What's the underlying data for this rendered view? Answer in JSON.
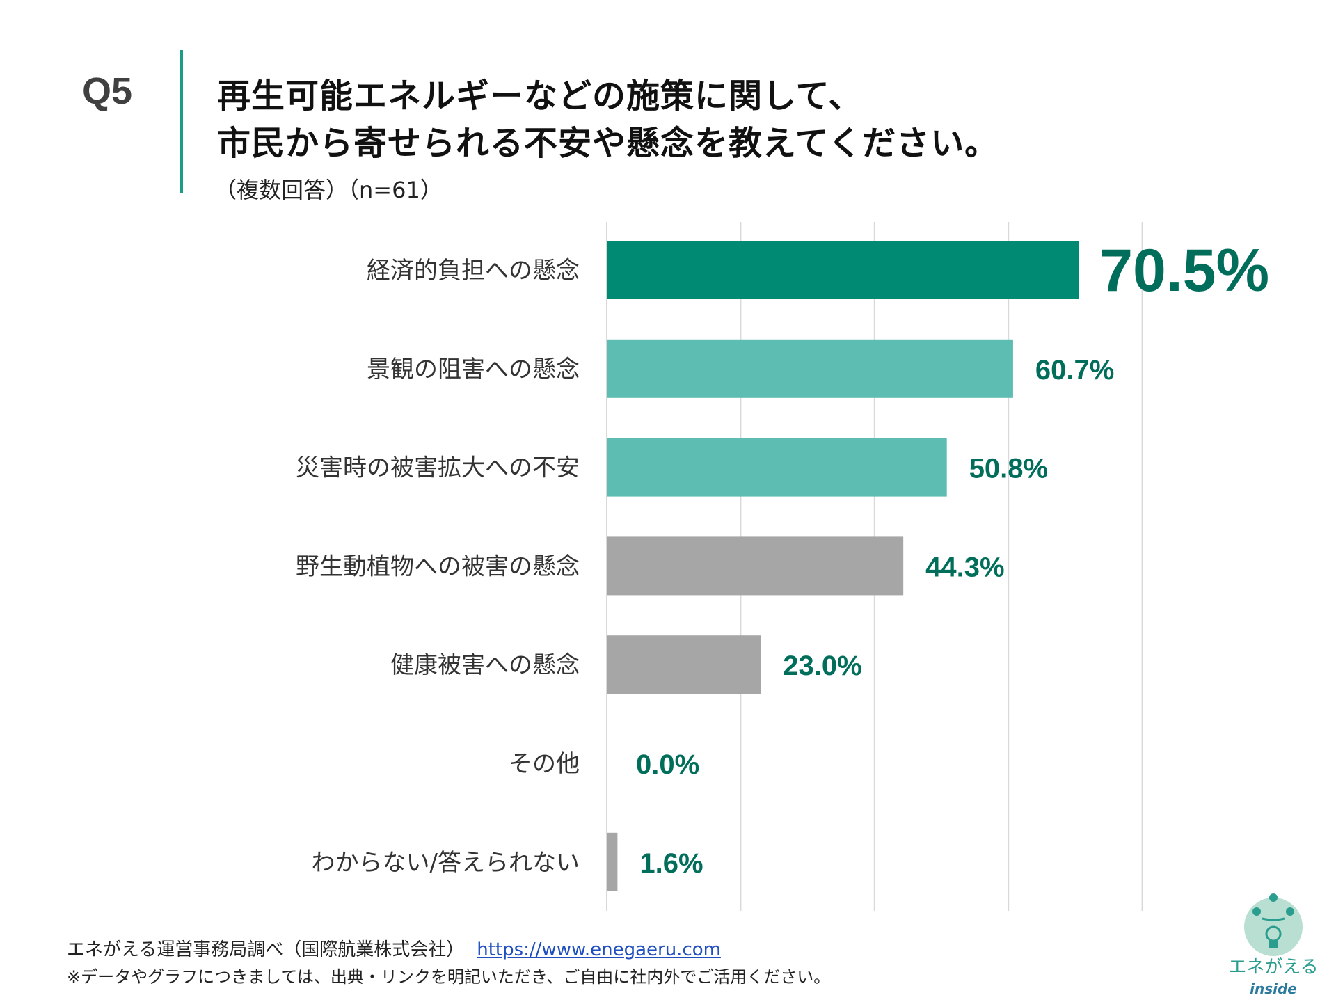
{
  "header": {
    "question_number": "Q5",
    "title_line1": "再生可能エネルギーなどの施策に関して、",
    "title_line2": "市民から寄せられる不安や懸念を教えてください。",
    "subtitle": "（複数回答）（n=61）"
  },
  "chart_data": {
    "type": "bar",
    "orientation": "horizontal",
    "categories": [
      "経済的負担への懸念",
      "景観の阻害への懸念",
      "災害時の被害拡大への不安",
      "野生動植物への被害の懸念",
      "健康被害への懸念",
      "その他",
      "わからない/答えられない"
    ],
    "values": [
      70.5,
      60.7,
      50.8,
      44.3,
      23.0,
      0.0,
      1.6
    ],
    "value_labels": [
      "70.5%",
      "60.7%",
      "50.8%",
      "44.3%",
      "23.0%",
      "0.0%",
      "1.6%"
    ],
    "bar_colors": [
      "#008a73",
      "#5dbdb2",
      "#5dbdb2",
      "#a6a6a6",
      "#a6a6a6",
      "#a6a6a6",
      "#a6a6a6"
    ],
    "label_color": "#006e5a",
    "xlim": [
      0,
      80
    ],
    "gridlines": [
      0,
      20,
      40,
      60,
      80
    ],
    "grid": true,
    "legend": "none"
  },
  "footer": {
    "source": "エネがえる運営事務局調べ（国際航業株式会社）",
    "link": "https://www.enegaeru.com",
    "note": "※データやグラフにつきましては、出典・リンクを明記いただき、ご自由に社内外でご活用ください。"
  },
  "logo": {
    "text": "エネがえる",
    "sub": "inside",
    "color": "#2a9d8f"
  }
}
